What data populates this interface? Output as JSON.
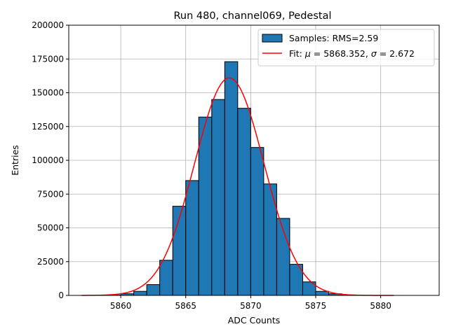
{
  "chart_data": {
    "type": "bar",
    "title": "Run 480, channel069, Pedestal",
    "xlabel": "ADC Counts",
    "ylabel": "Entries",
    "xlim": [
      5856,
      5884.5
    ],
    "ylim": [
      0,
      200000
    ],
    "xticks": [
      5860,
      5865,
      5870,
      5875,
      5880
    ],
    "yticks": [
      0,
      25000,
      50000,
      75000,
      100000,
      125000,
      150000,
      175000,
      200000
    ],
    "grid": true,
    "legend_position": "top-right",
    "series": [
      {
        "name": "Samples: RMS=2.59",
        "kind": "histogram",
        "color": "#1f77b4",
        "edge_color": "#000000",
        "bin_width": 1,
        "bins": [
          {
            "x": 5859.5,
            "value": 300
          },
          {
            "x": 5860.5,
            "value": 1200
          },
          {
            "x": 5861.5,
            "value": 3000
          },
          {
            "x": 5862.5,
            "value": 8000
          },
          {
            "x": 5863.5,
            "value": 26000
          },
          {
            "x": 5864.5,
            "value": 66000
          },
          {
            "x": 5865.5,
            "value": 85000
          },
          {
            "x": 5866.5,
            "value": 132000
          },
          {
            "x": 5867.5,
            "value": 145000
          },
          {
            "x": 5868.5,
            "value": 173000
          },
          {
            "x": 5869.5,
            "value": 138500
          },
          {
            "x": 5870.5,
            "value": 109500
          },
          {
            "x": 5871.5,
            "value": 82500
          },
          {
            "x": 5872.5,
            "value": 57000
          },
          {
            "x": 5873.5,
            "value": 23000
          },
          {
            "x": 5874.5,
            "value": 10000
          },
          {
            "x": 5875.5,
            "value": 3000
          },
          {
            "x": 5876.5,
            "value": 1200
          },
          {
            "x": 5877.5,
            "value": 300
          }
        ]
      },
      {
        "name": "Fit: $\\mu$ = 5868.352, $\\sigma$ = 2.672",
        "legend_parts": [
          "Fit: ",
          "μ",
          " = 5868.352, ",
          "σ",
          " = 2.672"
        ],
        "kind": "gaussian",
        "color": "#ff0000",
        "mu": 5868.352,
        "sigma": 2.672,
        "amplitude": 161000,
        "x_range": [
          5857,
          5881
        ]
      }
    ]
  }
}
